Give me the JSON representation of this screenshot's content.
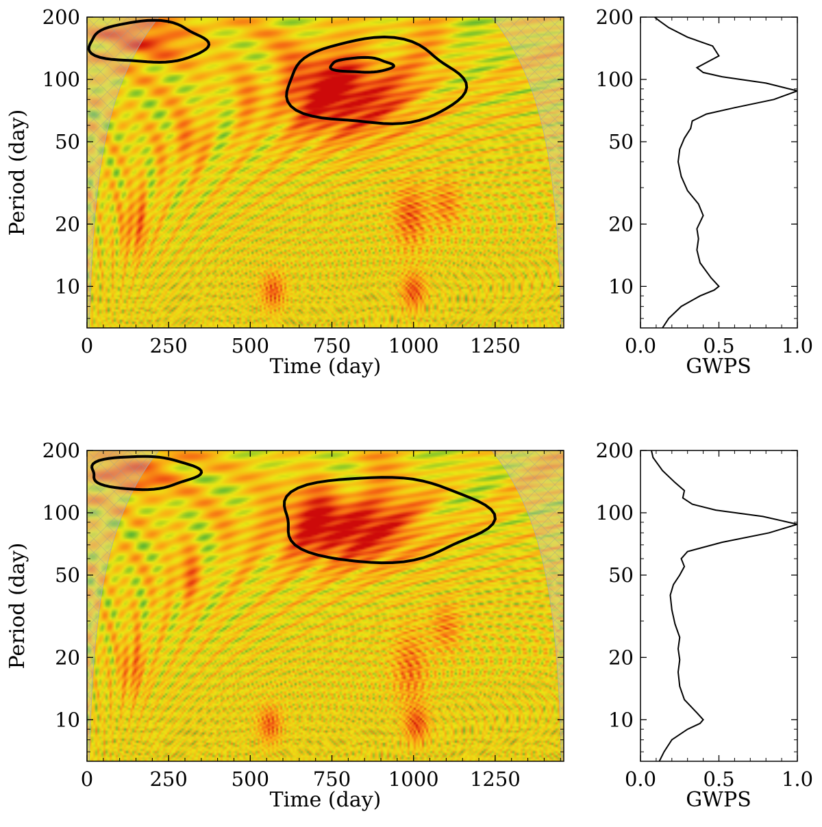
{
  "chart_data": [
    {
      "type": "heatmap",
      "name": "wavelet-top",
      "xlabel": "Time (day)",
      "ylabel": "Period (day)",
      "xlim": [
        0,
        1460
      ],
      "ylim": [
        6.3,
        200
      ],
      "yscale": "log",
      "xticks": [
        0,
        250,
        500,
        750,
        1000,
        1250
      ],
      "xtick_labels": [
        "0",
        "250",
        "500",
        "750",
        "1000",
        "1250"
      ],
      "yticks": [
        10,
        20,
        50,
        100,
        200
      ],
      "ytick_labels": [
        "10",
        "20",
        "50",
        "100",
        "200"
      ],
      "hotspots": [
        {
          "t": 780,
          "p": 85,
          "amp": 1.0,
          "st": 140,
          "sp": 0.35
        },
        {
          "t": 180,
          "p": 160,
          "amp": 0.55,
          "st": 110,
          "sp": 0.22
        },
        {
          "t": 1000,
          "p": 9.5,
          "amp": 0.6,
          "st": 25,
          "sp": 0.15
        },
        {
          "t": 570,
          "p": 9.5,
          "amp": 0.55,
          "st": 25,
          "sp": 0.15
        },
        {
          "t": 990,
          "p": 22,
          "amp": 0.55,
          "st": 35,
          "sp": 0.25
        },
        {
          "t": 150,
          "p": 20,
          "amp": 0.45,
          "st": 30,
          "sp": 0.25
        },
        {
          "t": 1100,
          "p": 25,
          "amp": 0.4,
          "st": 30,
          "sp": 0.2
        },
        {
          "t": 300,
          "p": 50,
          "amp": 0.35,
          "st": 40,
          "sp": 0.2
        }
      ],
      "significance_contours": [
        {
          "t0": 5,
          "t1": 365,
          "p_min": 120,
          "p_max": 190
        },
        {
          "t0": 610,
          "t1": 1150,
          "p_min": 60,
          "p_max": 155
        },
        {
          "t0": 745,
          "t1": 935,
          "p_min": 108,
          "p_max": 127
        }
      ]
    },
    {
      "type": "line",
      "name": "gwps-top",
      "xlabel": "GWPS",
      "ylabel": "",
      "xlim": [
        0,
        1
      ],
      "ylim": [
        6.3,
        200
      ],
      "yscale": "log",
      "xticks": [
        0,
        0.5,
        1
      ],
      "xtick_labels": [
        "0.0",
        "0.5",
        "1.0"
      ],
      "yticks": [
        10,
        20,
        50,
        100,
        200
      ],
      "ytick_labels": [
        "10",
        "20",
        "50",
        "100",
        "200"
      ],
      "series": [
        {
          "name": "GWPS",
          "x": [
            0.14,
            0.18,
            0.26,
            0.38,
            0.47,
            0.5,
            0.45,
            0.38,
            0.36,
            0.37,
            0.36,
            0.4,
            0.37,
            0.3,
            0.26,
            0.24,
            0.25,
            0.28,
            0.32,
            0.33,
            0.42,
            0.6,
            0.85,
            1.0,
            0.8,
            0.52,
            0.4,
            0.36,
            0.5,
            0.46,
            0.3,
            0.18,
            0.12,
            0.09
          ],
          "y": [
            6.3,
            7.0,
            8.0,
            9.0,
            9.6,
            10.0,
            11.0,
            13.0,
            15.0,
            17.0,
            19.0,
            22.0,
            25.0,
            29.0,
            34.0,
            40.0,
            46.0,
            52.0,
            58.0,
            63.0,
            68.0,
            73.0,
            80.0,
            88.0,
            96.0,
            103.0,
            108.0,
            114.0,
            130.0,
            145.0,
            160.0,
            178.0,
            192.0,
            200.0
          ]
        }
      ]
    },
    {
      "type": "heatmap",
      "name": "wavelet-bottom",
      "xlabel": "Time (day)",
      "ylabel": "Period (day)",
      "xlim": [
        0,
        1460
      ],
      "ylim": [
        6.3,
        200
      ],
      "yscale": "log",
      "xticks": [
        0,
        250,
        500,
        750,
        1000,
        1250
      ],
      "xtick_labels": [
        "0",
        "250",
        "500",
        "750",
        "1000",
        "1250"
      ],
      "yticks": [
        10,
        20,
        50,
        100,
        200
      ],
      "ytick_labels": [
        "10",
        "20",
        "50",
        "100",
        "200"
      ],
      "hotspots": [
        {
          "t": 790,
          "p": 85,
          "amp": 1.0,
          "st": 150,
          "sp": 0.3
        },
        {
          "t": 150,
          "p": 160,
          "amp": 0.5,
          "st": 100,
          "sp": 0.2
        },
        {
          "t": 1010,
          "p": 9.5,
          "amp": 0.6,
          "st": 25,
          "sp": 0.15
        },
        {
          "t": 560,
          "p": 9.5,
          "amp": 0.55,
          "st": 25,
          "sp": 0.15
        },
        {
          "t": 990,
          "p": 18,
          "amp": 0.45,
          "st": 35,
          "sp": 0.3
        },
        {
          "t": 140,
          "p": 18,
          "amp": 0.4,
          "st": 30,
          "sp": 0.25
        },
        {
          "t": 1100,
          "p": 28,
          "amp": 0.4,
          "st": 30,
          "sp": 0.2
        },
        {
          "t": 300,
          "p": 48,
          "amp": 0.35,
          "st": 40,
          "sp": 0.2
        }
      ],
      "significance_contours": [
        {
          "t0": 5,
          "t1": 335,
          "p_min": 130,
          "p_max": 188
        },
        {
          "t0": 585,
          "t1": 1220,
          "p_min": 58,
          "p_max": 150
        }
      ]
    },
    {
      "type": "line",
      "name": "gwps-bottom",
      "xlabel": "GWPS",
      "ylabel": "",
      "xlim": [
        0,
        1
      ],
      "ylim": [
        6.3,
        200
      ],
      "yscale": "log",
      "xticks": [
        0,
        0.5,
        1
      ],
      "xtick_labels": [
        "0.0",
        "0.5",
        "1.0"
      ],
      "yticks": [
        10,
        20,
        50,
        100,
        200
      ],
      "ytick_labels": [
        "10",
        "20",
        "50",
        "100",
        "200"
      ],
      "series": [
        {
          "name": "GWPS",
          "x": [
            0.12,
            0.15,
            0.2,
            0.3,
            0.38,
            0.4,
            0.36,
            0.28,
            0.25,
            0.24,
            0.25,
            0.24,
            0.25,
            0.22,
            0.2,
            0.19,
            0.21,
            0.25,
            0.28,
            0.26,
            0.3,
            0.52,
            0.82,
            1.0,
            0.78,
            0.48,
            0.33,
            0.27,
            0.28,
            0.22,
            0.14,
            0.08,
            0.07
          ],
          "y": [
            6.3,
            7.0,
            8.0,
            9.0,
            9.6,
            10.0,
            10.8,
            12.5,
            14.5,
            17.0,
            19.5,
            22.0,
            25.0,
            29.0,
            34.0,
            40.0,
            45.0,
            50.0,
            55.0,
            60.0,
            65.0,
            72.0,
            80.0,
            88.0,
            96.0,
            103.0,
            110.0,
            118.0,
            128.0,
            140.0,
            160.0,
            185.0,
            200.0
          ]
        }
      ]
    }
  ]
}
